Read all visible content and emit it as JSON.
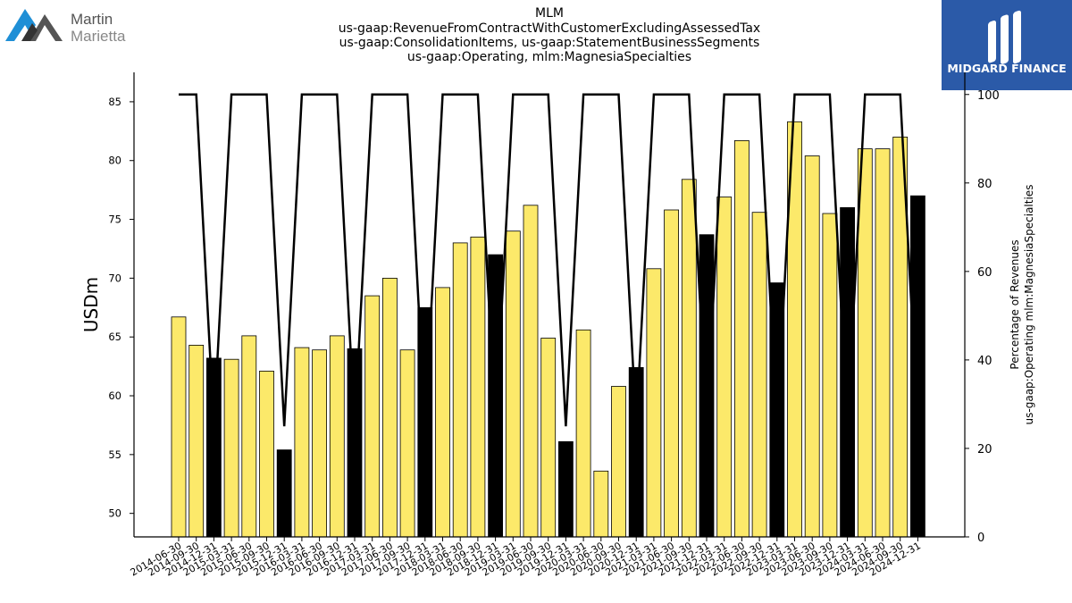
{
  "title_lines": [
    "MLM",
    "us-gaap:RevenueFromContractWithCustomerExcludingAssessedTax",
    "us-gaap:ConsolidationItems, us-gaap:StatementBusinessSegments",
    "us-gaap:Operating, mlm:MagnesiaSpecialties"
  ],
  "logos": {
    "left": {
      "line1": "Martin",
      "line2": "Marietta",
      "accent": "#1f8fd6",
      "gray": "#555555"
    },
    "right": {
      "text": "MIDGARD FINANCE",
      "bg": "#2b5aa8"
    }
  },
  "chart_data": {
    "type": "bar",
    "ylabel": "USDm",
    "y2label": [
      "Percentage of Revenues",
      "us-gaap:Operating mlm:MagnesiaSpecialties"
    ],
    "ylim": [
      48,
      87.5
    ],
    "y2lim": [
      0,
      105
    ],
    "yticks": [
      50,
      55,
      60,
      65,
      70,
      75,
      80,
      85
    ],
    "y2ticks": [
      0,
      20,
      40,
      60,
      80,
      100
    ],
    "colors": {
      "bar_quarter": "#fce96a",
      "bar_annual": "#000000",
      "line": "#000000"
    },
    "categories": [
      "2014-06-30",
      "2014-09-30",
      "2014-12-31",
      "2015-03-31",
      "2015-06-30",
      "2015-09-30",
      "2015-12-31",
      "2016-03-31",
      "2016-06-30",
      "2016-09-30",
      "2016-12-31",
      "2017-03-31",
      "2017-06-30",
      "2017-09-30",
      "2017-12-31",
      "2018-03-31",
      "2018-06-30",
      "2018-09-30",
      "2018-12-31",
      "2019-03-31",
      "2019-06-30",
      "2019-09-30",
      "2019-12-31",
      "2020-03-31",
      "2020-06-30",
      "2020-09-30",
      "2020-12-31",
      "2021-03-31",
      "2021-06-30",
      "2021-09-30",
      "2021-12-31",
      "2022-03-31",
      "2022-06-30",
      "2022-09-30",
      "2022-12-31",
      "2023-03-31",
      "2023-06-30",
      "2023-09-30",
      "2023-12-31",
      "2024-03-31",
      "2024-06-30",
      "2024-09-30",
      "2024-12-31"
    ],
    "values": [
      66.7,
      64.3,
      63.2,
      63.1,
      65.1,
      62.1,
      55.4,
      64.1,
      63.9,
      65.1,
      64.0,
      68.5,
      70.0,
      63.9,
      67.5,
      69.2,
      73.0,
      73.5,
      72.0,
      74.0,
      76.2,
      64.9,
      56.1,
      65.6,
      53.6,
      60.8,
      62.4,
      70.8,
      75.8,
      78.4,
      73.7,
      76.9,
      81.7,
      75.6,
      69.6,
      83.3,
      80.4,
      75.5,
      76.0,
      81.0,
      81.0,
      82.0,
      77.0
    ],
    "annual": [
      false,
      false,
      true,
      false,
      false,
      false,
      true,
      false,
      false,
      false,
      true,
      false,
      false,
      false,
      true,
      false,
      false,
      false,
      true,
      false,
      false,
      false,
      true,
      false,
      false,
      false,
      true,
      false,
      false,
      false,
      true,
      false,
      false,
      false,
      true,
      false,
      false,
      false,
      true,
      false,
      false,
      false,
      true
    ],
    "percentage": [
      100,
      100,
      25,
      100,
      100,
      100,
      25,
      100,
      100,
      100,
      25,
      100,
      100,
      100,
      25,
      100,
      100,
      100,
      25,
      100,
      100,
      100,
      25,
      100,
      100,
      100,
      25,
      100,
      100,
      100,
      25,
      100,
      100,
      100,
      25,
      100,
      100,
      100,
      25,
      100,
      100,
      100,
      25
    ]
  }
}
